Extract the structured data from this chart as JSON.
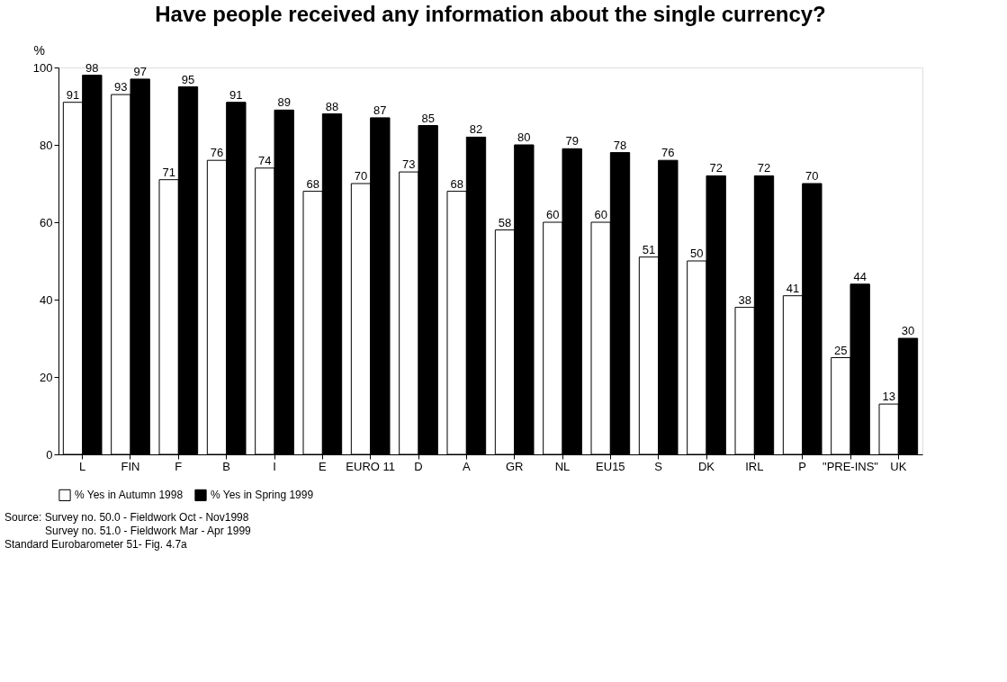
{
  "chart_data": {
    "type": "bar",
    "title": "Have people received any information about the single currency?",
    "ylabel": "%",
    "categories": [
      "L",
      "FIN",
      "F",
      "B",
      "I",
      "E",
      "EURO 11",
      "D",
      "A",
      "GR",
      "NL",
      "EU15",
      "S",
      "DK",
      "IRL",
      "P",
      "\"PRE-INS\"",
      "UK"
    ],
    "series": [
      {
        "name": "% Yes in Autumn 1998",
        "color": "#ffffff",
        "values": [
          91,
          93,
          71,
          76,
          74,
          68,
          70,
          73,
          68,
          58,
          60,
          60,
          51,
          50,
          38,
          41,
          25,
          13
        ]
      },
      {
        "name": "% Yes in Spring 1999",
        "color": "#000000",
        "values": [
          98,
          97,
          95,
          91,
          89,
          88,
          87,
          85,
          82,
          80,
          79,
          78,
          76,
          72,
          72,
          70,
          44,
          30
        ]
      }
    ],
    "ylim": [
      0,
      100
    ],
    "yticks": [
      0,
      20,
      40,
      60,
      80,
      100
    ],
    "grid": false,
    "legend": "bottom",
    "data_labels": true,
    "annotations": [
      "Source: Survey no. 50.0 - Fieldwork Oct - Nov1998",
      "Survey no. 51.0 - Fieldwork Mar - Apr 1999",
      "Standard Eurobarometer 51- Fig. 4.7a"
    ]
  }
}
